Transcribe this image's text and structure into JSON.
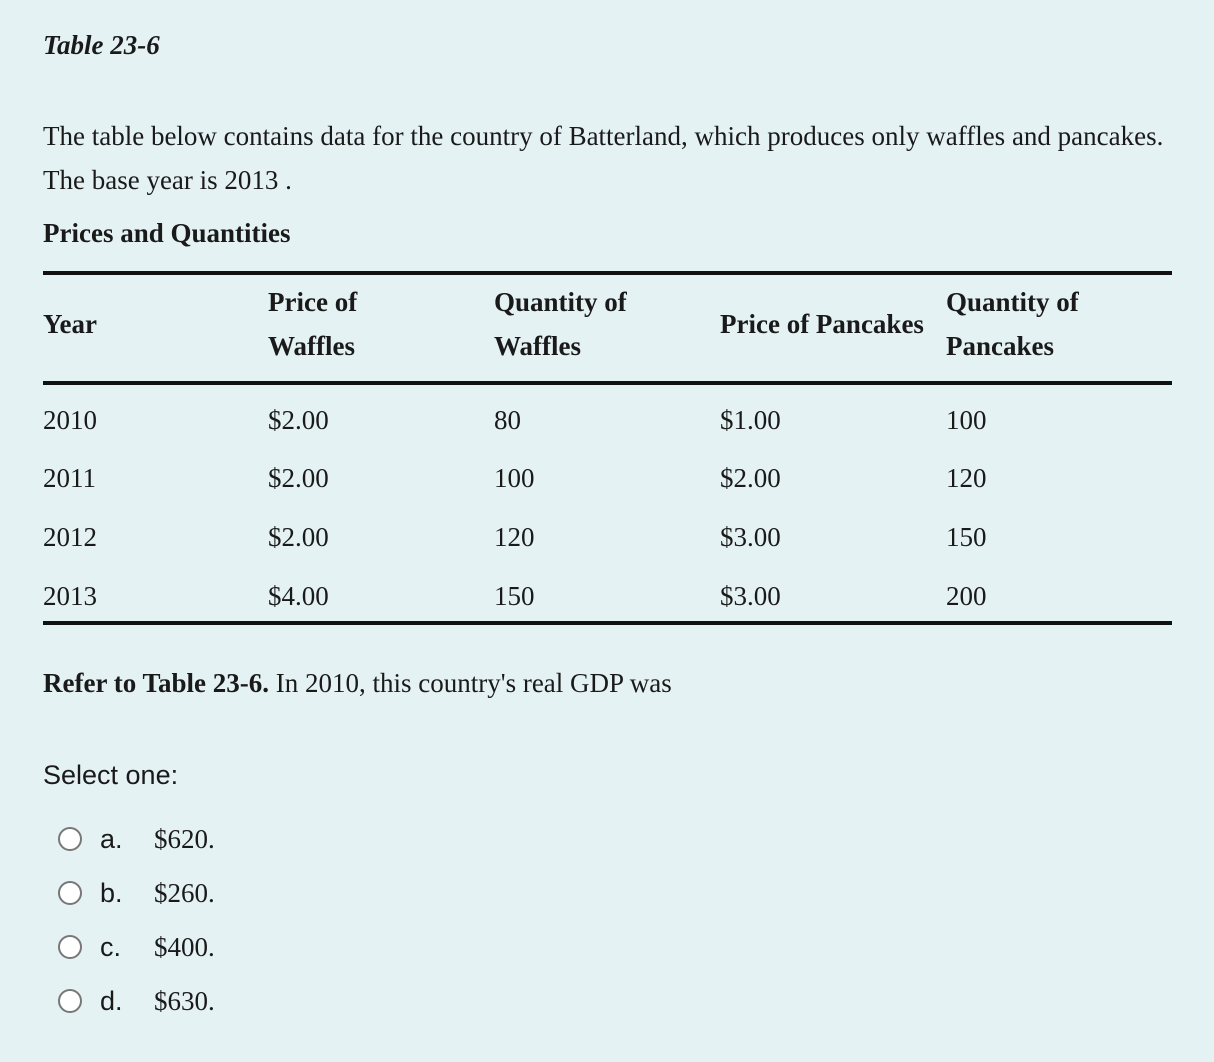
{
  "title": "Table 23-6",
  "intro": "The table below contains data for the country of Batterland, which produces only waffles and pancakes. The base year is 2013 .",
  "table": {
    "caption": "Prices and Quantities",
    "headers": {
      "year": "Year",
      "price_waffles_1": "Price of",
      "price_waffles_2": "Waffles",
      "qty_waffles_1": "Quantity of",
      "qty_waffles_2": "Waffles",
      "price_pancakes": "Price of Pancakes",
      "qty_pancakes_1": "Quantity of",
      "qty_pancakes_2": "Pancakes"
    },
    "rows": [
      [
        "2010",
        "$2.00",
        "80",
        "$1.00",
        "100"
      ],
      [
        "2011",
        "$2.00",
        "100",
        "$2.00",
        "120"
      ],
      [
        "2012",
        "$2.00",
        "120",
        "$3.00",
        "150"
      ],
      [
        "2013",
        "$4.00",
        "150",
        "$3.00",
        "200"
      ]
    ]
  },
  "question": {
    "ref": "Refer to Table 23-6.",
    "text": " In 2010, this country's real GDP was"
  },
  "select_label": "Select one:",
  "options": [
    {
      "letter": "a.",
      "text": "$620."
    },
    {
      "letter": "b.",
      "text": "$260."
    },
    {
      "letter": "c.",
      "text": "$400."
    },
    {
      "letter": "d.",
      "text": "$630."
    }
  ]
}
